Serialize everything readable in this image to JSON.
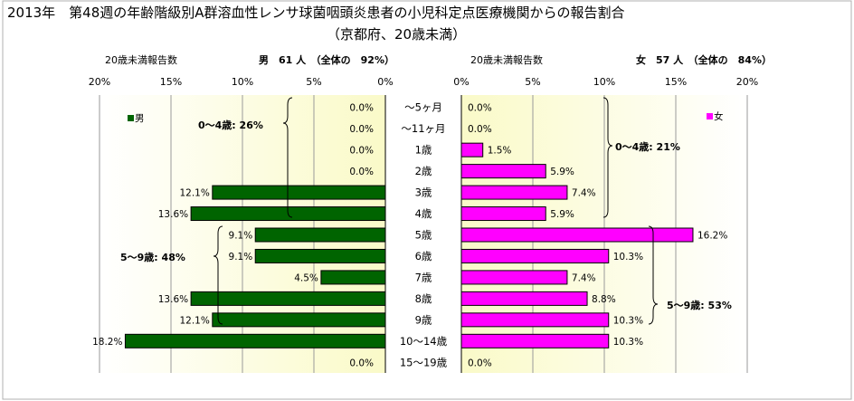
{
  "title_line1": "2013年　第48週の年齢階級別A群溶血性レンサ球菌咽頭炎患者の小児科定点医療機関からの報告割合",
  "title_line2": "（京都府、20歳未満）",
  "left_panel": {
    "count_label": "20歳未満報告数",
    "header": "男　61 人　（全体の　92%）",
    "legend": "男",
    "bracket_top": "0～4歳:  26%",
    "bracket_bottom": "5～9歳:  48%"
  },
  "right_panel": {
    "count_label": "20歳未満報告数",
    "header": "女　57 人　（全体の　84%）",
    "legend": "女",
    "bracket_top": "0～4歳: 21%",
    "bracket_bottom": "5～9歳: 53%"
  },
  "chart_data": {
    "type": "bar",
    "orientation": "horizontal",
    "layout": "population-pyramid",
    "categories": [
      "～5ヶ月",
      "～11ヶ月",
      "1歳",
      "2歳",
      "3歳",
      "4歳",
      "5歳",
      "6歳",
      "7歳",
      "8歳",
      "9歳",
      "10～14歳",
      "15～19歳"
    ],
    "series": [
      {
        "name": "男",
        "values": [
          0.0,
          0.0,
          0.0,
          0.0,
          12.1,
          13.6,
          9.1,
          9.1,
          4.5,
          13.6,
          12.1,
          18.2,
          0.0
        ],
        "color": "#006400"
      },
      {
        "name": "女",
        "values": [
          0.0,
          0.0,
          1.5,
          5.9,
          7.4,
          5.9,
          16.2,
          10.3,
          7.4,
          8.8,
          10.3,
          10.3,
          0.0
        ],
        "color": "#FF00FF"
      }
    ],
    "data_labels_left": [
      "0.0%",
      "0.0%",
      "0.0%",
      "0.0%",
      "12.1%",
      "13.6%",
      "9.1%",
      "9.1%",
      "4.5%",
      "13.6%",
      "12.1%",
      "18.2%",
      "0.0%"
    ],
    "data_labels_right": [
      "0.0%",
      "0.0%",
      "1.5%",
      "5.9%",
      "7.4%",
      "5.9%",
      "16.2%",
      "10.3%",
      "7.4%",
      "8.8%",
      "10.3%",
      "10.3%",
      "0.0%"
    ],
    "xlim": [
      0,
      20
    ],
    "left_ticks": [
      "20%",
      "15%",
      "10%",
      "5%",
      "0%"
    ],
    "right_ticks": [
      "0%",
      "5%",
      "10%",
      "15%",
      "20%"
    ],
    "grid": true,
    "background": "yellow gradient"
  }
}
